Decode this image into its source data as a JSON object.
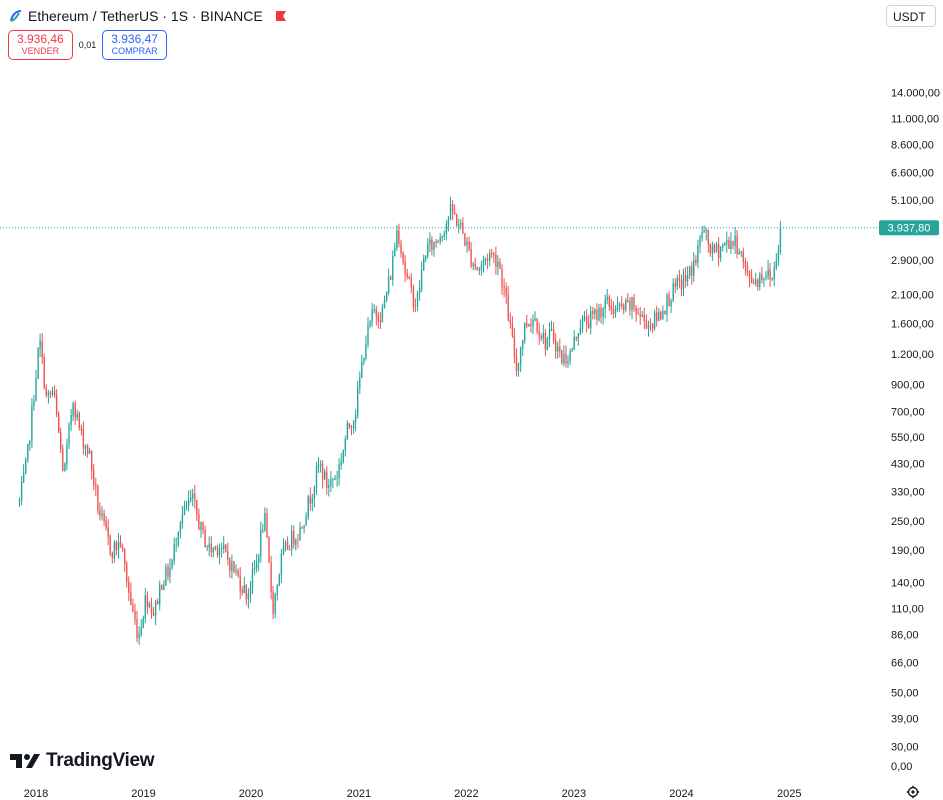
{
  "header": {
    "symbol_title": "Ethereum / TetherUS · 1S · BINANCE",
    "symbol_icon": "ethereum-icon",
    "flag_icon": "flag-icon"
  },
  "trading": {
    "sell_price": "3.936,46",
    "sell_label": "VENDER",
    "spread": "0,01",
    "buy_price": "3.936,47",
    "buy_label": "COMPRAR"
  },
  "currency": "USDT",
  "branding": {
    "logo_text": "TradingView"
  },
  "colors": {
    "up": "#26a69a",
    "down": "#ef5350",
    "last_price": "#26a69a",
    "axis_text": "#131722"
  },
  "chart_data": {
    "type": "candlestick",
    "title": "Ethereum / TetherUS · 1S · BINANCE",
    "interval": "1 week",
    "y_scale": "log",
    "ylim": [
      0,
      14000
    ],
    "y_ticks": [
      14000,
      11000,
      8600,
      6600,
      5100,
      2900,
      2100,
      1600,
      1200,
      900,
      700,
      550,
      430,
      330,
      250,
      190,
      140,
      110,
      86,
      66,
      50,
      39,
      30,
      0
    ],
    "y_tick_labels": [
      "14.000,00",
      "11.000,00",
      "8.600,00",
      "6.600,00",
      "5.100,00",
      "2.900,00",
      "2.100,00",
      "1.600,00",
      "1.200,00",
      "900,00",
      "700,00",
      "550,00",
      "430,00",
      "330,00",
      "250,00",
      "190,00",
      "140,00",
      "110,00",
      "86,00",
      "66,00",
      "50,00",
      "39,00",
      "30,00",
      "0,00"
    ],
    "x_ticks": [
      "2018",
      "2019",
      "2020",
      "2021",
      "2022",
      "2023",
      "2024",
      "2025"
    ],
    "x_range": [
      "2017-11-06",
      "2025-07-01"
    ],
    "last_price": 3937.8,
    "last_price_label": "3.937,80",
    "close_series": [
      {
        "date": "2017-11-06",
        "value": 300
      },
      {
        "date": "2017-12-01",
        "value": 440
      },
      {
        "date": "2018-01-13",
        "value": 1380
      },
      {
        "date": "2018-02-06",
        "value": 780
      },
      {
        "date": "2018-03-01",
        "value": 850
      },
      {
        "date": "2018-04-06",
        "value": 380
      },
      {
        "date": "2018-05-06",
        "value": 800
      },
      {
        "date": "2018-06-01",
        "value": 570
      },
      {
        "date": "2018-07-01",
        "value": 470
      },
      {
        "date": "2018-08-01",
        "value": 280
      },
      {
        "date": "2018-09-13",
        "value": 190
      },
      {
        "date": "2018-10-15",
        "value": 205
      },
      {
        "date": "2018-11-19",
        "value": 115
      },
      {
        "date": "2018-12-15",
        "value": 85
      },
      {
        "date": "2019-01-10",
        "value": 125
      },
      {
        "date": "2019-02-06",
        "value": 105
      },
      {
        "date": "2019-03-01",
        "value": 140
      },
      {
        "date": "2019-04-06",
        "value": 165
      },
      {
        "date": "2019-05-01",
        "value": 250
      },
      {
        "date": "2019-06-15",
        "value": 310
      },
      {
        "date": "2019-07-20",
        "value": 220
      },
      {
        "date": "2019-08-15",
        "value": 190
      },
      {
        "date": "2019-09-15",
        "value": 200
      },
      {
        "date": "2019-10-15",
        "value": 175
      },
      {
        "date": "2019-11-15",
        "value": 150
      },
      {
        "date": "2019-12-18",
        "value": 125
      },
      {
        "date": "2020-01-20",
        "value": 170
      },
      {
        "date": "2020-02-15",
        "value": 265
      },
      {
        "date": "2020-03-15",
        "value": 110
      },
      {
        "date": "2020-04-15",
        "value": 180
      },
      {
        "date": "2020-05-15",
        "value": 210
      },
      {
        "date": "2020-06-15",
        "value": 230
      },
      {
        "date": "2020-07-25",
        "value": 330
      },
      {
        "date": "2020-08-20",
        "value": 430
      },
      {
        "date": "2020-09-15",
        "value": 350
      },
      {
        "date": "2020-10-20",
        "value": 390
      },
      {
        "date": "2020-11-25",
        "value": 600
      },
      {
        "date": "2020-12-20",
        "value": 700
      },
      {
        "date": "2021-01-20",
        "value": 1300
      },
      {
        "date": "2021-02-20",
        "value": 1800
      },
      {
        "date": "2021-03-20",
        "value": 1750
      },
      {
        "date": "2021-04-20",
        "value": 2600
      },
      {
        "date": "2021-05-12",
        "value": 4000
      },
      {
        "date": "2021-06-10",
        "value": 2500
      },
      {
        "date": "2021-07-15",
        "value": 1900
      },
      {
        "date": "2021-08-15",
        "value": 3200
      },
      {
        "date": "2021-09-15",
        "value": 3400
      },
      {
        "date": "2021-10-20",
        "value": 4000
      },
      {
        "date": "2021-11-10",
        "value": 4650
      },
      {
        "date": "2021-12-15",
        "value": 3900
      },
      {
        "date": "2022-01-15",
        "value": 3000
      },
      {
        "date": "2022-02-10",
        "value": 2650
      },
      {
        "date": "2022-03-20",
        "value": 3100
      },
      {
        "date": "2022-04-20",
        "value": 2900
      },
      {
        "date": "2022-05-15",
        "value": 2000
      },
      {
        "date": "2022-06-20",
        "value": 1050
      },
      {
        "date": "2022-07-20",
        "value": 1600
      },
      {
        "date": "2022-08-20",
        "value": 1700
      },
      {
        "date": "2022-09-25",
        "value": 1350
      },
      {
        "date": "2022-10-20",
        "value": 1450
      },
      {
        "date": "2022-11-20",
        "value": 1150
      },
      {
        "date": "2022-12-20",
        "value": 1200
      },
      {
        "date": "2023-01-20",
        "value": 1600
      },
      {
        "date": "2023-02-20",
        "value": 1650
      },
      {
        "date": "2023-03-20",
        "value": 1750
      },
      {
        "date": "2023-04-20",
        "value": 1950
      },
      {
        "date": "2023-05-20",
        "value": 1820
      },
      {
        "date": "2023-06-20",
        "value": 1850
      },
      {
        "date": "2023-07-20",
        "value": 1900
      },
      {
        "date": "2023-08-20",
        "value": 1680
      },
      {
        "date": "2023-09-20",
        "value": 1600
      },
      {
        "date": "2023-10-20",
        "value": 1750
      },
      {
        "date": "2023-11-20",
        "value": 2050
      },
      {
        "date": "2023-12-20",
        "value": 2300
      },
      {
        "date": "2024-01-20",
        "value": 2450
      },
      {
        "date": "2024-02-20",
        "value": 2950
      },
      {
        "date": "2024-03-12",
        "value": 3900
      },
      {
        "date": "2024-04-15",
        "value": 3100
      },
      {
        "date": "2024-05-15",
        "value": 3300
      },
      {
        "date": "2024-06-15",
        "value": 3500
      },
      {
        "date": "2024-07-15",
        "value": 3300
      },
      {
        "date": "2024-08-10",
        "value": 2500
      },
      {
        "date": "2024-09-10",
        "value": 2400
      },
      {
        "date": "2024-10-10",
        "value": 2600
      },
      {
        "date": "2024-11-05",
        "value": 2450
      },
      {
        "date": "2024-11-25",
        "value": 3400
      },
      {
        "date": "2024-12-06",
        "value": 3937.8
      }
    ]
  }
}
